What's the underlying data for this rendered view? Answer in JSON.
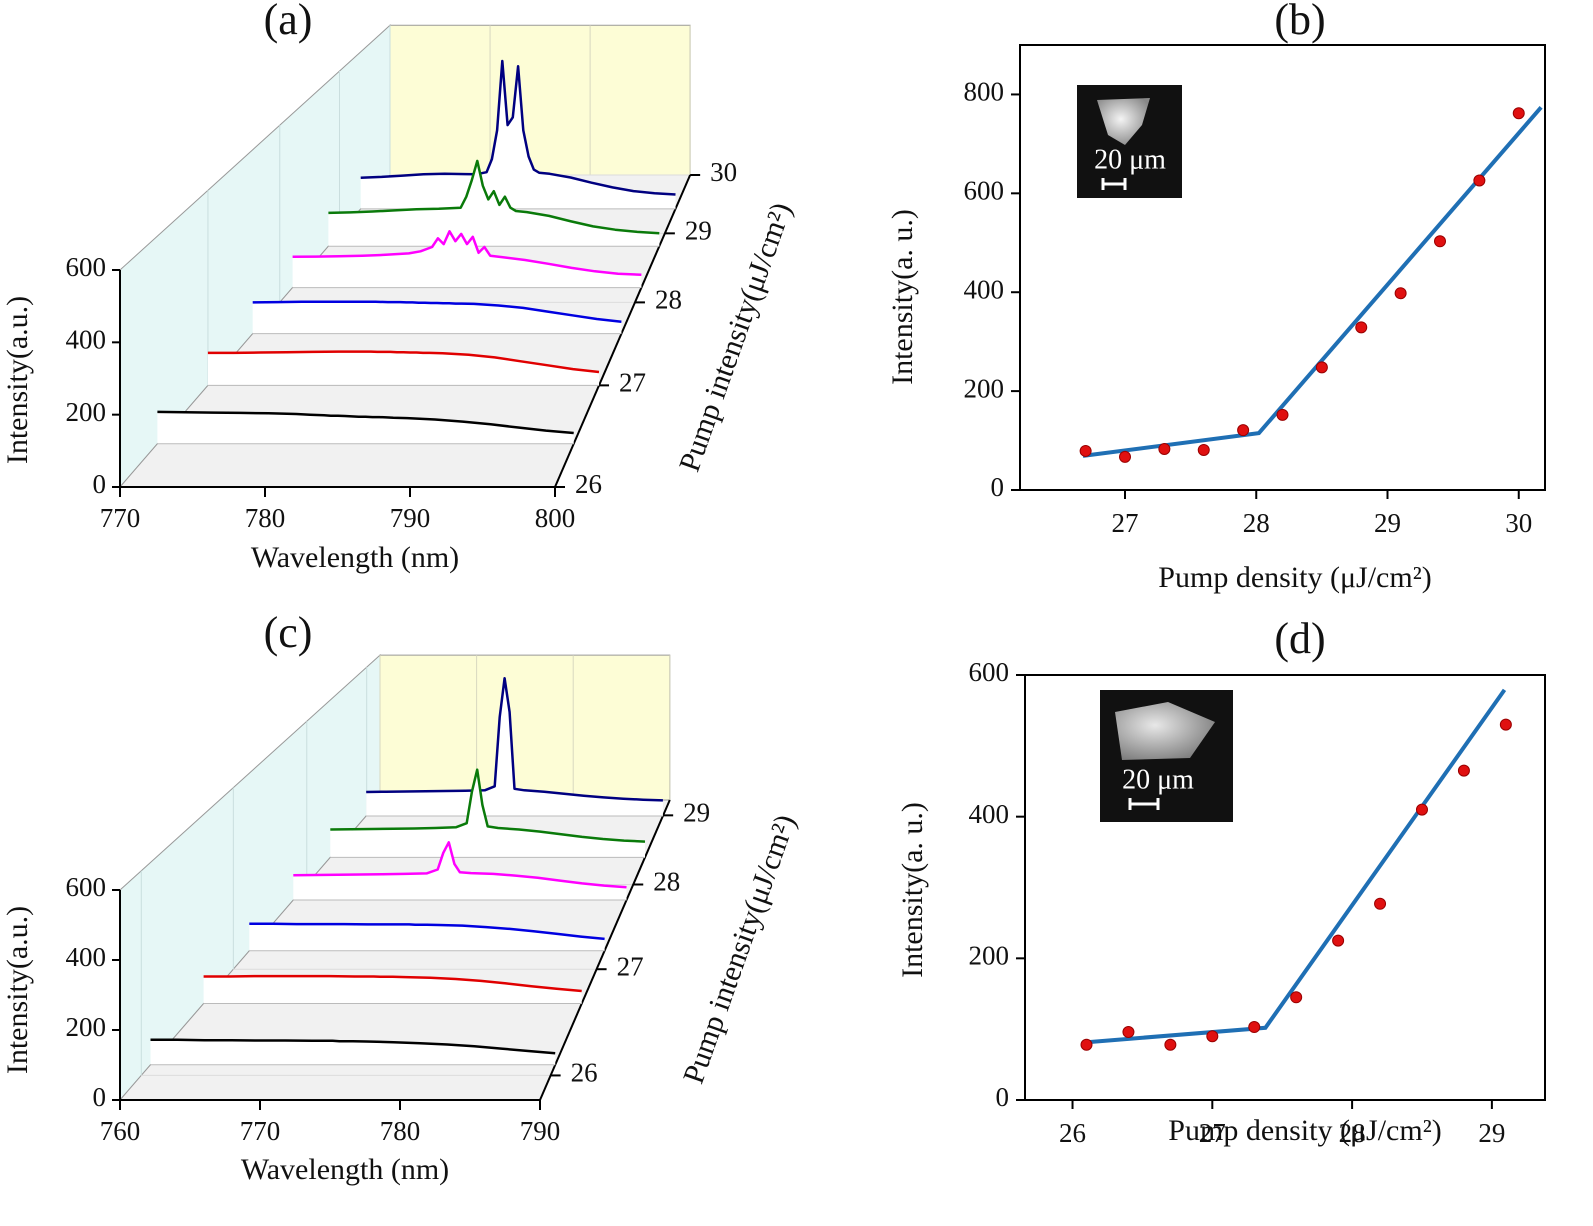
{
  "chart_data": [
    {
      "type": "waterfall",
      "title": "(a)",
      "xlabel": "Wavelength (nm)",
      "ylabel": "Intensity(a.u.)",
      "zlabel": "Pump intensity(μJ/cm²)",
      "xlim": [
        770,
        800
      ],
      "xticks": [
        770,
        780,
        790,
        800
      ],
      "ylim": [
        0,
        600
      ],
      "yticks": [
        0,
        200,
        400,
        600
      ],
      "zlim": [
        26,
        30
      ],
      "zticks": [
        26,
        27,
        28,
        29,
        30
      ],
      "x": [
        770,
        772,
        774,
        776,
        778,
        780,
        781,
        782,
        782.5,
        783,
        783.5,
        784,
        784.5,
        785,
        785.5,
        786,
        786.5,
        787,
        788,
        790,
        792,
        794,
        796,
        798,
        800
      ],
      "series": [
        {
          "z": 26.4,
          "color": "#000000",
          "values": [
            92,
            91,
            90,
            89,
            88,
            86,
            84,
            82,
            81,
            81,
            80,
            79,
            78,
            78,
            77,
            77,
            76,
            75,
            74,
            70,
            64,
            56,
            47,
            38,
            31
          ]
        },
        {
          "z": 27.0,
          "color": "#e00000",
          "values": [
            100,
            100,
            101,
            102,
            103,
            104,
            104,
            104,
            104,
            103,
            103,
            103,
            102,
            102,
            101,
            101,
            100,
            100,
            99,
            94,
            86,
            74,
            62,
            50,
            41
          ]
        },
        {
          "z": 27.6,
          "color": "#0000e0",
          "values": [
            102,
            103,
            104,
            104,
            104,
            104,
            103,
            103,
            102,
            102,
            101,
            101,
            100,
            100,
            99,
            99,
            98,
            98,
            97,
            92,
            84,
            72,
            60,
            48,
            39
          ]
        },
        {
          "z": 28.2,
          "color": "#ff00ff",
          "values": [
            106,
            107,
            108,
            110,
            113,
            118,
            125,
            140,
            170,
            150,
            194,
            160,
            185,
            150,
            175,
            120,
            140,
            110,
            105,
            95,
            82,
            68,
            56,
            48,
            44
          ]
        },
        {
          "z": 28.8,
          "color": "#0a7a0a",
          "values": [
            121,
            123,
            126,
            130,
            134,
            136,
            138,
            140,
            180,
            240,
            310,
            220,
            170,
            200,
            150,
            180,
            140,
            128,
            124,
            110,
            90,
            72,
            60,
            52,
            47
          ]
        },
        {
          "z": 29.4,
          "color": "#000080",
          "values": [
            119,
            122,
            127,
            132,
            134,
            133,
            132,
            140,
            190,
            300,
            565,
            320,
            350,
            545,
            300,
            200,
            150,
            138,
            134,
            120,
            100,
            82,
            68,
            60,
            55
          ]
        }
      ]
    },
    {
      "type": "scatter_fit",
      "title": "(b)",
      "xlabel": "Pump density (μJ/cm²)",
      "ylabel": "Intensity(a. u.)",
      "inset_label": "20 μm",
      "xlim": [
        26.2,
        30.2
      ],
      "xticks": [
        27,
        28,
        29,
        30
      ],
      "ylim": [
        0,
        900
      ],
      "yticks": [
        0,
        200,
        400,
        600,
        800
      ],
      "series": [
        {
          "mode": "markers",
          "color": "#e01010",
          "x": [
            26.7,
            27.0,
            27.3,
            27.6,
            27.9,
            28.2,
            28.5,
            28.8,
            29.1,
            29.4,
            29.7,
            30.0
          ],
          "values": [
            79,
            67,
            83,
            81,
            121,
            152,
            248,
            329,
            398,
            503,
            626,
            762
          ]
        },
        {
          "mode": "line",
          "color": "#1f6fb4",
          "x": [
            26.68,
            28.02,
            30.17
          ],
          "values": [
            69,
            115,
            774
          ]
        }
      ]
    },
    {
      "type": "waterfall",
      "title": "(c)",
      "xlabel": "Wavelength (nm)",
      "ylabel": "Intensity(a.u.)",
      "zlabel": "Pump intensity(μJ/cm²)",
      "xlim": [
        760,
        790
      ],
      "xticks": [
        760,
        770,
        780,
        790
      ],
      "ylim": [
        0,
        600
      ],
      "yticks": [
        0,
        200,
        400,
        600
      ],
      "zlim": [
        25.8,
        29.25
      ],
      "zticks": [
        26,
        27,
        28,
        29
      ],
      "x": [
        760,
        762,
        764,
        766,
        768,
        770,
        772,
        773,
        773.5,
        774,
        774.5,
        775,
        776,
        778,
        780,
        782,
        784,
        786,
        788,
        790
      ],
      "series": [
        {
          "z": 26.09,
          "color": "#000000",
          "values": [
            74,
            74,
            73,
            73,
            72,
            72,
            71,
            71,
            71,
            70,
            70,
            70,
            69,
            67,
            64,
            60,
            55,
            48,
            41,
            34
          ]
        },
        {
          "z": 26.65,
          "color": "#e00000",
          "values": [
            86,
            86,
            87,
            87,
            87,
            87,
            86,
            86,
            86,
            85,
            85,
            85,
            84,
            82,
            78,
            72,
            64,
            55,
            47,
            40
          ]
        },
        {
          "z": 27.2,
          "color": "#0000e0",
          "values": [
            91,
            91,
            90,
            90,
            90,
            89,
            89,
            89,
            89,
            88,
            88,
            88,
            87,
            85,
            80,
            74,
            66,
            57,
            48,
            40
          ]
        },
        {
          "z": 27.8,
          "color": "#ff00ff",
          "values": [
            89,
            90,
            91,
            92,
            93,
            94,
            96,
            110,
            170,
            208,
            130,
            100,
            97,
            94,
            88,
            80,
            70,
            60,
            52,
            46
          ]
        },
        {
          "z": 28.37,
          "color": "#0a7a0a",
          "values": [
            106,
            107,
            108,
            109,
            110,
            112,
            115,
            130,
            250,
            334,
            200,
            118,
            112,
            106,
            98,
            88,
            78,
            70,
            64,
            60
          ]
        },
        {
          "z": 28.99,
          "color": "#000080",
          "values": [
            97,
            98,
            99,
            100,
            101,
            102,
            104,
            120,
            400,
            557,
            420,
            110,
            104,
            98,
            90,
            82,
            75,
            70,
            66,
            63
          ]
        }
      ]
    },
    {
      "type": "scatter_fit",
      "title": "(d)",
      "xlabel": "Pump density (μJ/cm²)",
      "ylabel": "Intensity(a. u.)",
      "inset_label": "20 μm",
      "xlim": [
        25.66,
        29.38
      ],
      "xticks": [
        26,
        27,
        28,
        29
      ],
      "ylim": [
        0,
        600
      ],
      "yticks": [
        0,
        200,
        400,
        600
      ],
      "series": [
        {
          "mode": "markers",
          "color": "#e01010",
          "x": [
            26.1,
            26.4,
            26.7,
            27.0,
            27.3,
            27.6,
            27.9,
            28.2,
            28.5,
            28.8,
            29.1
          ],
          "values": [
            78,
            96,
            78,
            90,
            103,
            145,
            225,
            277,
            410,
            465,
            530
          ]
        },
        {
          "mode": "line",
          "color": "#1f6fb4",
          "x": [
            26.07,
            27.38,
            29.09
          ],
          "values": [
            81,
            102,
            579
          ]
        }
      ]
    }
  ]
}
